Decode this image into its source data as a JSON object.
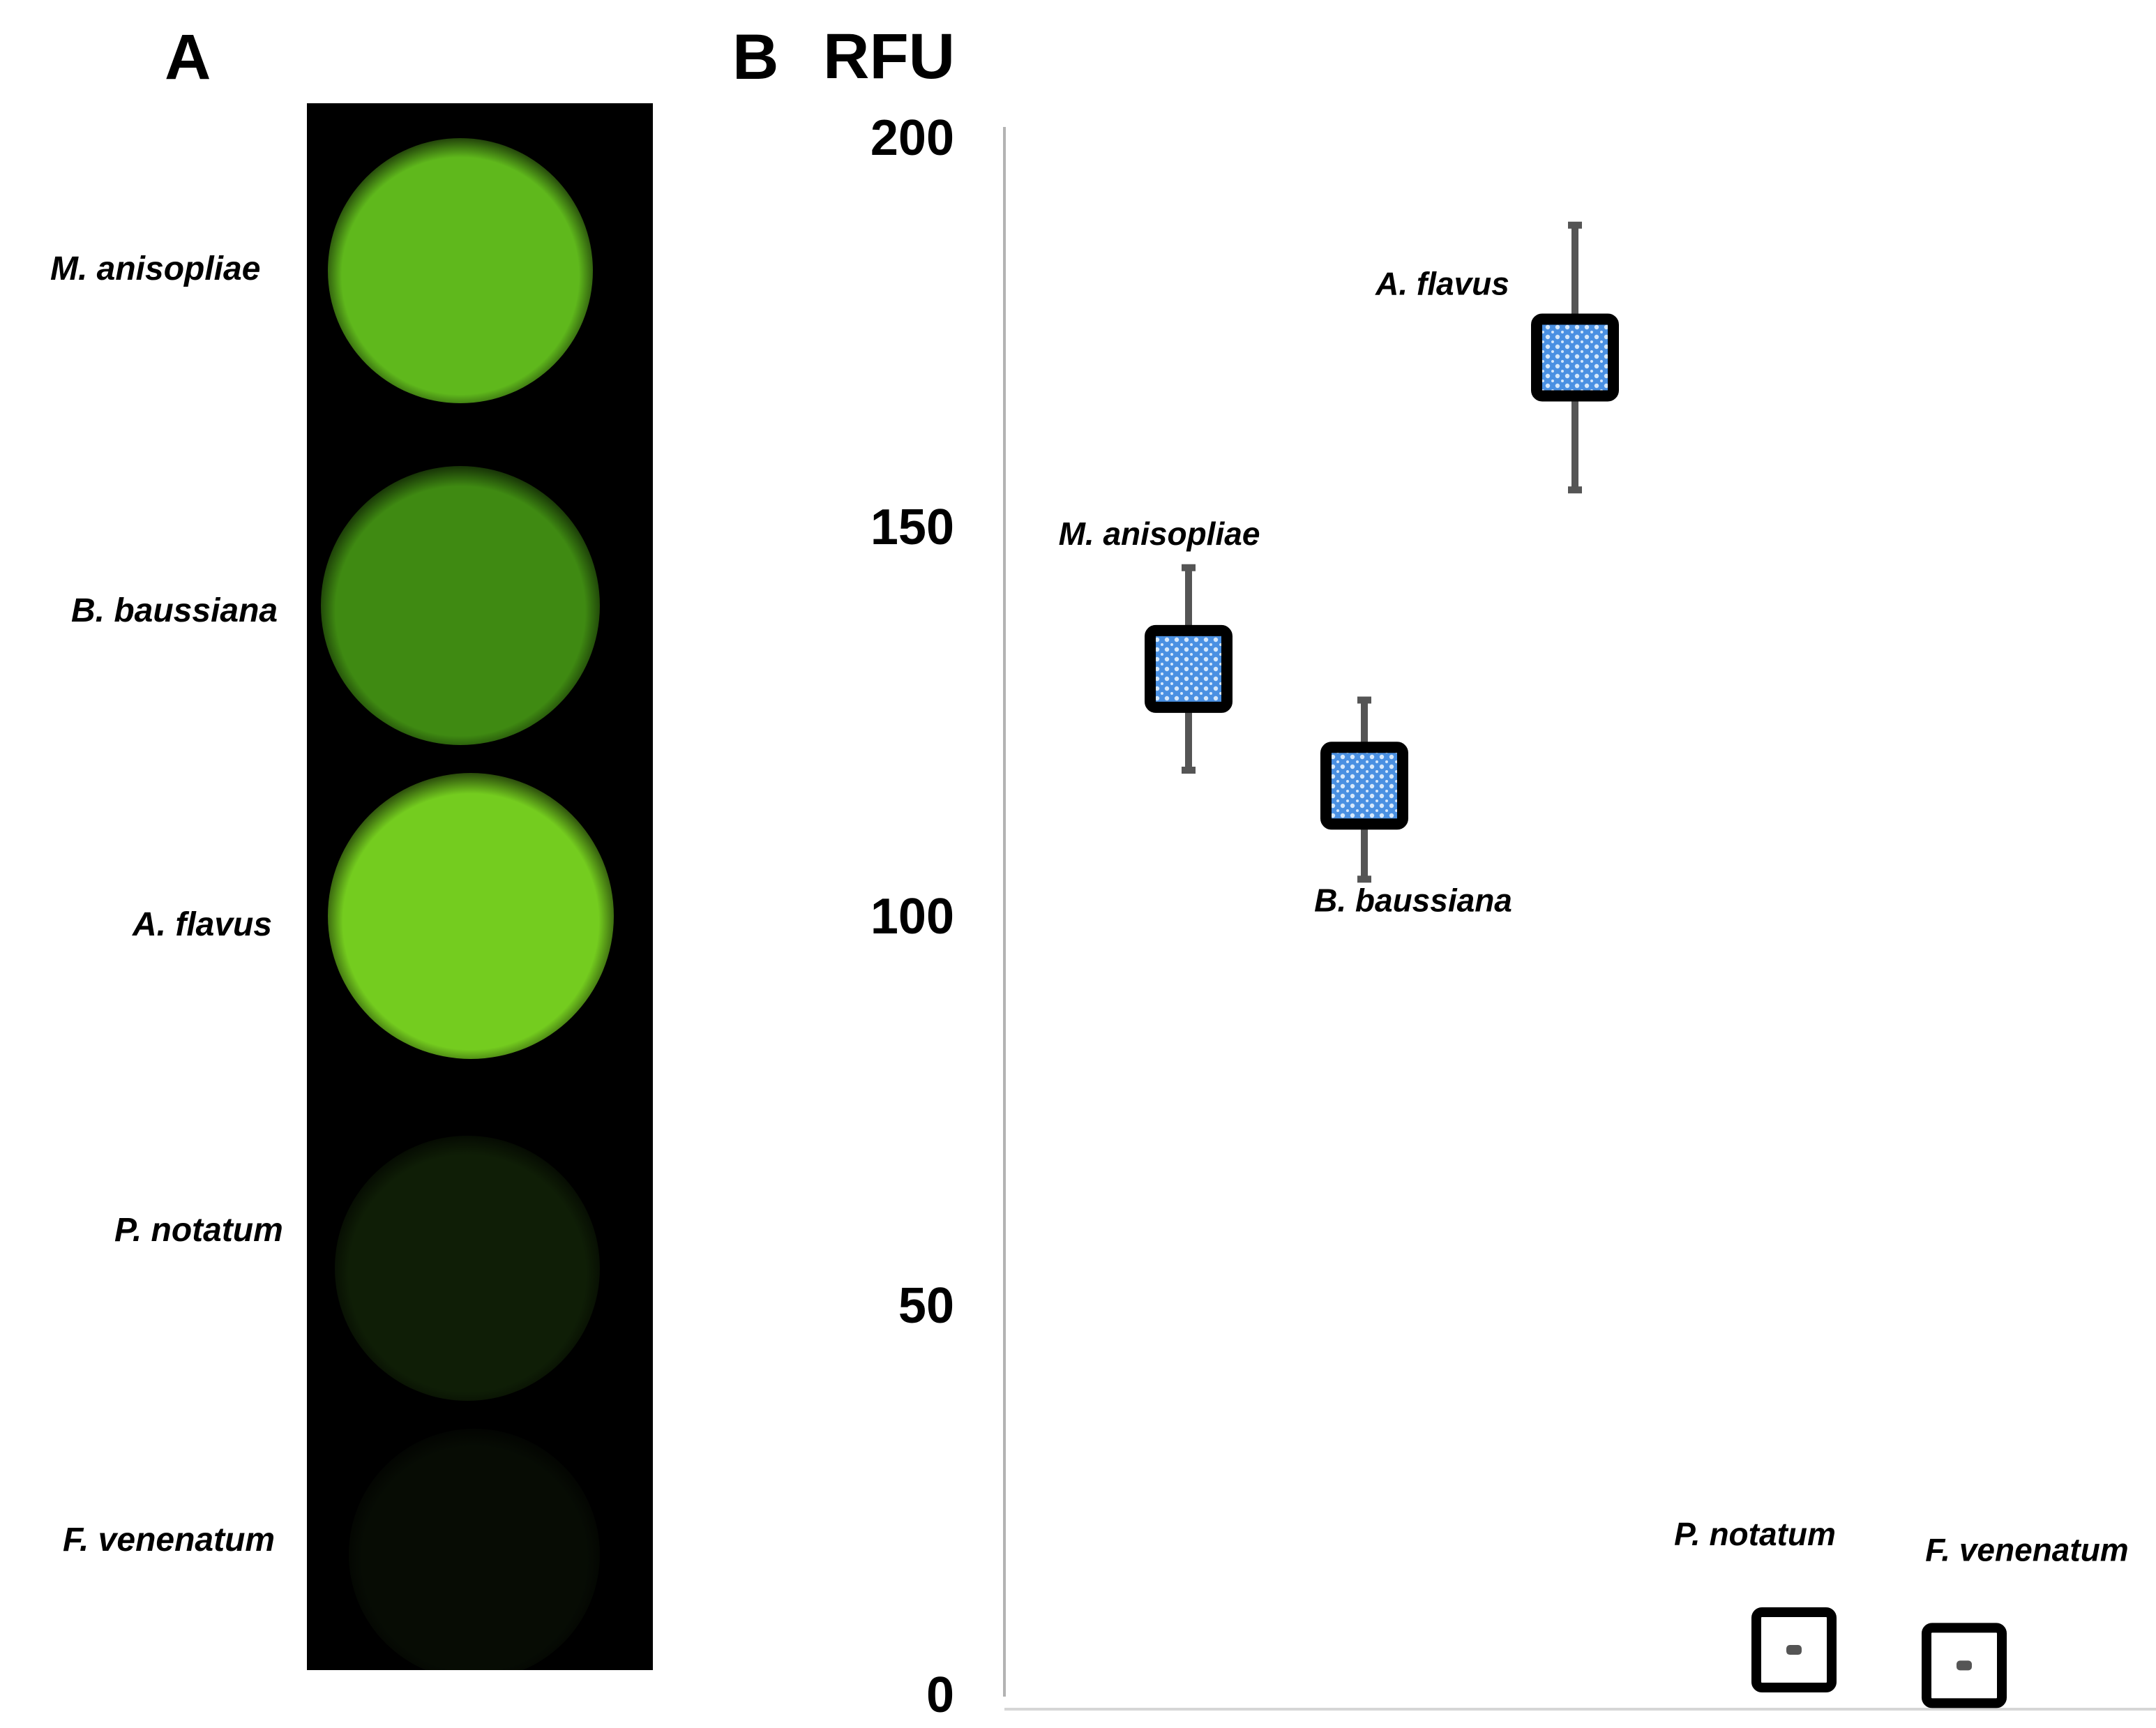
{
  "panels": {
    "a_label": "A",
    "b_label": "B"
  },
  "photo": {
    "row_labels": [
      "M. anisopliae",
      "B. baussiana",
      "A. flavus",
      "P. notatum",
      "F. venenatum"
    ],
    "well_colors": [
      "#5fb81c",
      "#3f8a12",
      "#74cc1f",
      "#0f1e06",
      "#070c04"
    ]
  },
  "colors": {
    "axis": "#b3b3b3",
    "marker_fill": "#4a90e2",
    "marker_border": "#000000",
    "whisker": "#555555"
  },
  "chart_data": {
    "type": "scatter",
    "ylabel": "RFU",
    "ylim": [
      0,
      200
    ],
    "yticks": [
      "0",
      "50",
      "100",
      "150",
      "200"
    ],
    "error_bars": true,
    "points": [
      {
        "label": "M. anisopliae",
        "y": 132,
        "err_low": 119,
        "err_high": 145,
        "filled": true
      },
      {
        "label": "B. baussiana",
        "y": 117,
        "err_low": 105,
        "err_high": 128,
        "filled": true
      },
      {
        "label": "A. flavus",
        "y": 172,
        "err_low": 155,
        "err_high": 189,
        "filled": true
      },
      {
        "label": "P. notatum",
        "y": 6,
        "err_low": 5.5,
        "err_high": 6.5,
        "filled": false
      },
      {
        "label": "F. venenatum",
        "y": 4,
        "err_low": 3.5,
        "err_high": 4.5,
        "filled": false
      }
    ]
  }
}
